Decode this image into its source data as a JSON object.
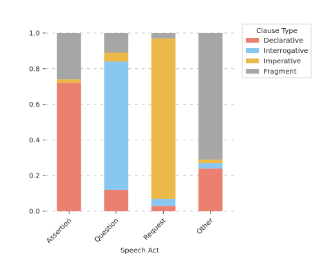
{
  "chart_data": {
    "type": "bar",
    "stacked": true,
    "xlabel": "Speech Act",
    "ylabel": "",
    "ylim": [
      0,
      1.0
    ],
    "yticks": [
      "0.0",
      "0.2",
      "0.4",
      "0.6",
      "0.8",
      "1.0"
    ],
    "grid": "horizontal dashed",
    "categories": [
      "Assertion",
      "Question",
      "Request",
      "Other"
    ],
    "series": [
      {
        "name": "Declarative",
        "color": "#ec8070",
        "values": [
          0.72,
          0.12,
          0.03,
          0.24
        ]
      },
      {
        "name": "Interrogative",
        "color": "#88c7ef",
        "values": [
          0.0,
          0.72,
          0.04,
          0.03
        ]
      },
      {
        "name": "Imperative",
        "color": "#ecb948",
        "values": [
          0.02,
          0.05,
          0.9,
          0.02
        ]
      },
      {
        "name": "Fragment",
        "color": "#a6a6a6",
        "values": [
          0.26,
          0.11,
          0.03,
          0.71
        ]
      }
    ],
    "legend": {
      "title": "Clause Type",
      "placement": "upper right, outside plot"
    }
  }
}
